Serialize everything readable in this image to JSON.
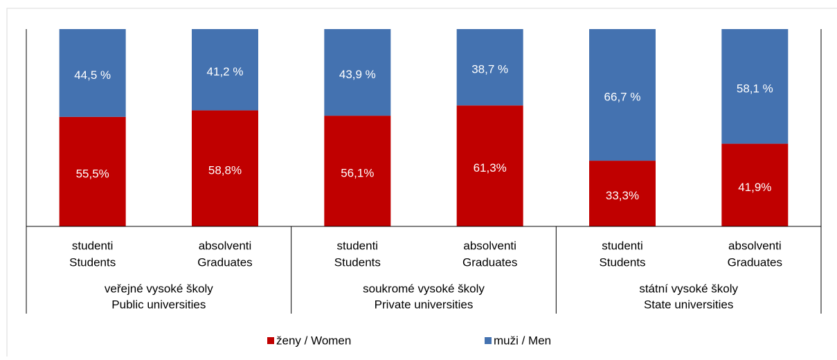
{
  "chart_data": {
    "type": "stacked_bar",
    "categories": [
      [
        "studenti",
        "Students"
      ],
      [
        "absolventi",
        "Graduates"
      ],
      [
        "studenti",
        "Students"
      ],
      [
        "absolventi",
        "Graduates"
      ],
      [
        "studenti",
        "Students"
      ],
      [
        "absolventi",
        "Graduates"
      ]
    ],
    "groups": [
      [
        "veřejné vysoké školy",
        "Public universities"
      ],
      [
        "soukromé vysoké školy",
        "Private universities"
      ],
      [
        "státní vysoké školy",
        "State universities"
      ]
    ],
    "series": [
      {
        "name": "ženy / Women",
        "color": "#c00000",
        "values": [
          55.5,
          58.8,
          56.1,
          61.3,
          33.3,
          41.9
        ],
        "value_labels": [
          "55,5%",
          "58,8%",
          "56,1%",
          "61,3%",
          "33,3%",
          "41,9%"
        ]
      },
      {
        "name": "muži / Men",
        "color": "#4472b0",
        "values": [
          44.5,
          41.2,
          43.9,
          38.7,
          66.7,
          58.1
        ],
        "value_labels": [
          "44,5 %",
          "41,2 %",
          "43,9 %",
          "38,7 %",
          "66,7 %",
          "58,1 %"
        ]
      }
    ],
    "ylim": [
      0,
      100
    ]
  }
}
